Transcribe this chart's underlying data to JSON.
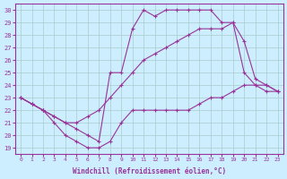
{
  "xlabel": "Windchill (Refroidissement éolien,°C)",
  "background_color": "#cceeff",
  "grid_color": "#aacccc",
  "line_color": "#993399",
  "xlim": [
    -0.5,
    23.5
  ],
  "ylim": [
    18.5,
    30.5
  ],
  "xticks": [
    0,
    1,
    2,
    3,
    4,
    5,
    6,
    7,
    8,
    9,
    10,
    11,
    12,
    13,
    14,
    15,
    16,
    17,
    18,
    19,
    20,
    21,
    22,
    23
  ],
  "yticks": [
    19,
    20,
    21,
    22,
    23,
    24,
    25,
    26,
    27,
    28,
    29,
    30
  ],
  "line1_x": [
    0,
    1,
    2,
    3,
    4,
    5,
    6,
    7,
    8,
    9,
    10,
    11,
    12,
    13,
    14,
    15,
    16,
    17,
    18,
    19,
    20,
    21,
    22,
    23
  ],
  "line1_y": [
    23,
    22.5,
    22,
    21,
    20,
    19.5,
    19,
    19,
    19.5,
    21,
    22,
    22,
    22,
    22,
    22,
    22,
    22.5,
    23,
    23,
    23.5,
    24,
    24,
    24,
    23.5
  ],
  "line2_x": [
    0,
    1,
    2,
    3,
    4,
    5,
    6,
    7,
    8,
    9,
    10,
    11,
    12,
    13,
    14,
    15,
    16,
    17,
    18,
    19,
    20,
    21,
    22,
    23
  ],
  "line2_y": [
    23,
    22.5,
    22,
    21.5,
    21,
    21,
    21.5,
    22,
    23,
    24,
    25,
    26,
    26.5,
    27,
    27.5,
    28,
    28.5,
    28.5,
    28.5,
    29,
    27.5,
    24.5,
    24,
    23.5
  ],
  "line3_x": [
    0,
    1,
    2,
    3,
    4,
    5,
    6,
    7,
    8,
    9,
    10,
    11,
    12,
    13,
    14,
    15,
    16,
    17,
    18,
    19,
    20,
    21,
    22,
    23
  ],
  "line3_y": [
    23,
    22.5,
    22,
    21.5,
    21,
    20.5,
    20,
    19.5,
    25,
    25,
    28.5,
    30,
    29.5,
    30,
    30,
    30,
    30,
    30,
    29,
    29,
    25,
    24,
    23.5,
    23.5
  ],
  "marker": "+"
}
